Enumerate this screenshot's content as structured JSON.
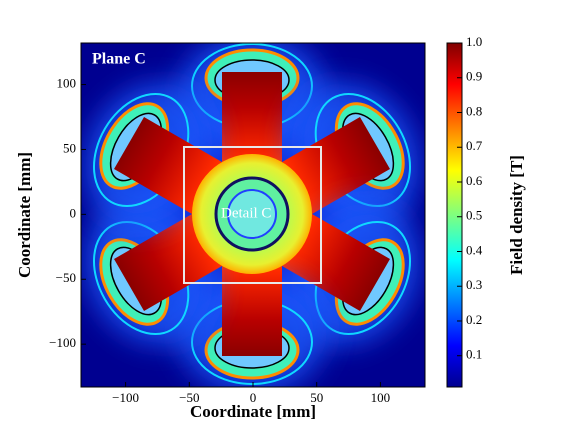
{
  "chart_data": {
    "type": "heatmap",
    "xlabel": "Coordinate [mm]",
    "ylabel": "Coordinate [mm]",
    "xlim": [
      -135,
      135
    ],
    "ylim": [
      -133,
      132
    ],
    "xticks": [
      {
        "value": -100,
        "label": "−100"
      },
      {
        "value": -50,
        "label": "−50"
      },
      0,
      50,
      100
    ],
    "yticks": [
      {
        "value": -100,
        "label": "−100"
      },
      {
        "value": -50,
        "label": "−50"
      },
      0,
      50,
      100
    ],
    "annotations": [
      "Plane C",
      "Detail C"
    ],
    "colorbar": {
      "label": "Field density [T]",
      "lim": [
        0.01,
        1.0
      ],
      "ticks": [
        0.1,
        0.2,
        0.3,
        0.4,
        0.5,
        0.6,
        0.7,
        0.8,
        0.9,
        {
          "value": 1,
          "label": "1.0"
        }
      ]
    }
  }
}
